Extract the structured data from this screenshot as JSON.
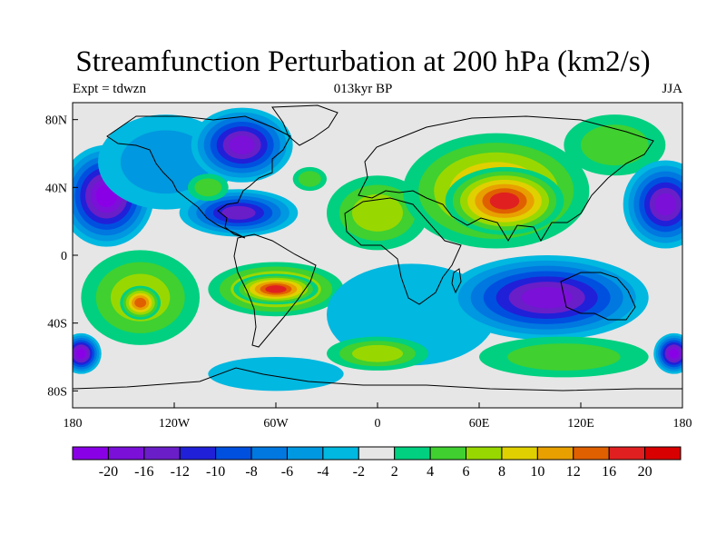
{
  "title": "Streamfunction Perturbation at 200 hPa (km2/s)",
  "left_string": "Expt = tdwzn",
  "center_string": "013kyr BP",
  "right_string": "JJA",
  "lat_ticks": [
    "80N",
    "40N",
    "0",
    "40S",
    "80S"
  ],
  "lon_ticks": [
    "180",
    "120W",
    "60W",
    "0",
    "60E",
    "120E",
    "180"
  ],
  "colorbar": {
    "labels": [
      "-20",
      "-16",
      "-12",
      "-10",
      "-8",
      "-6",
      "-4",
      "-2",
      "2",
      "4",
      "6",
      "8",
      "10",
      "12",
      "16",
      "20"
    ],
    "colors": [
      "#8a00e6",
      "#7b10d8",
      "#6a1ec8",
      "#2020d8",
      "#0050e0",
      "#0078e0",
      "#0098e0",
      "#00b8e0",
      "#e6e6e6",
      "#00d080",
      "#40d030",
      "#98d800",
      "#e0d000",
      "#e8a000",
      "#e06000",
      "#e02020",
      "#d80000"
    ]
  },
  "contour_blobs": [
    {
      "lon": -160,
      "lat": 35,
      "rx": 28,
      "ry": 30,
      "level": 0
    },
    {
      "lon": -125,
      "lat": 55,
      "rx": 40,
      "ry": 28,
      "level": 6
    },
    {
      "lon": -80,
      "lat": 65,
      "rx": 30,
      "ry": 22,
      "level": 1
    },
    {
      "lon": -82,
      "lat": 25,
      "rx": 35,
      "ry": 14,
      "level": 2
    },
    {
      "lon": -100,
      "lat": 40,
      "rx": 12,
      "ry": 8,
      "level": 10
    },
    {
      "lon": -40,
      "lat": 45,
      "rx": 10,
      "ry": 7,
      "level": 10
    },
    {
      "lon": 0,
      "lat": 25,
      "rx": 30,
      "ry": 22,
      "level": 11
    },
    {
      "lon": 70,
      "lat": 38,
      "rx": 55,
      "ry": 34,
      "level": 13
    },
    {
      "lon": 75,
      "lat": 32,
      "rx": 35,
      "ry": 20,
      "level": 15
    },
    {
      "lon": 140,
      "lat": 65,
      "rx": 30,
      "ry": 18,
      "level": 10
    },
    {
      "lon": 170,
      "lat": 30,
      "rx": 25,
      "ry": 26,
      "level": 1
    },
    {
      "lon": -140,
      "lat": -25,
      "rx": 35,
      "ry": 28,
      "level": 11
    },
    {
      "lon": -140,
      "lat": -28,
      "rx": 12,
      "ry": 10,
      "level": 14
    },
    {
      "lon": -60,
      "lat": -20,
      "rx": 40,
      "ry": 16,
      "level": 13
    },
    {
      "lon": -60,
      "lat": -20,
      "rx": 25,
      "ry": 9,
      "level": 15
    },
    {
      "lon": 20,
      "lat": -35,
      "rx": 50,
      "ry": 30,
      "level": 7
    },
    {
      "lon": 100,
      "lat": -25,
      "rx": 60,
      "ry": 25,
      "level": 1
    },
    {
      "lon": 110,
      "lat": -60,
      "rx": 50,
      "ry": 12,
      "level": 10
    },
    {
      "lon": 0,
      "lat": -58,
      "rx": 30,
      "ry": 10,
      "level": 11
    },
    {
      "lon": -175,
      "lat": -58,
      "rx": 12,
      "ry": 12,
      "level": 0
    },
    {
      "lon": 175,
      "lat": -58,
      "rx": 12,
      "ry": 12,
      "level": 0
    },
    {
      "lon": -60,
      "lat": -70,
      "rx": 40,
      "ry": 10,
      "level": 7
    }
  ]
}
